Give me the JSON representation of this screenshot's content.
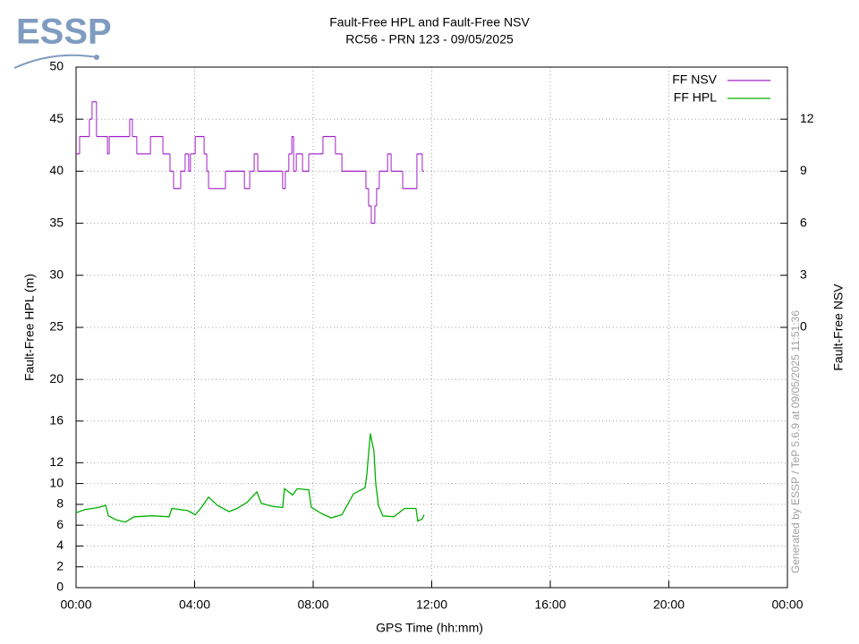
{
  "chart_data": {
    "type": "line",
    "logo": "ESSP",
    "title": "Fault-Free HPL and Fault-Free NSV",
    "subtitle": "RC56 - PRN 123 - 09/05/2025",
    "xlabel": "GPS Time (hh:mm)",
    "ylabel": "Fault-Free HPL (m)",
    "y2label": "Fault-Free NSV",
    "footnote": "Generated by ESSP / TeP 5.6.9 at 09/05/2025 11:51:36",
    "xlim": [
      0,
      24
    ],
    "xticks": [
      {
        "value": 0,
        "label": "00:00"
      },
      {
        "value": 4,
        "label": "04:00"
      },
      {
        "value": 8,
        "label": "08:00"
      },
      {
        "value": 12,
        "label": "12:00"
      },
      {
        "value": 16,
        "label": "16:00"
      },
      {
        "value": 20,
        "label": "20:00"
      },
      {
        "value": 24,
        "label": "00:00"
      }
    ],
    "ylim": [
      0,
      50
    ],
    "yticks": [
      0,
      2,
      4,
      6,
      8,
      10,
      12,
      16,
      20,
      25,
      30,
      35,
      40,
      45,
      50
    ],
    "y2lim": [
      -15,
      15
    ],
    "y2ticks": [
      0,
      3,
      6,
      9,
      12
    ],
    "grid": true,
    "legend": "upper right",
    "series": [
      {
        "name": "FF NSV",
        "color": "#a21ec8",
        "axis": "y2",
        "drawstyle": "steps-post",
        "x": [
          0.0,
          0.12,
          0.45,
          0.54,
          0.69,
          1.06,
          1.12,
          1.81,
          1.9,
          2.05,
          2.51,
          2.93,
          3.17,
          3.29,
          3.53,
          3.68,
          3.8,
          3.86,
          4.02,
          4.32,
          4.41,
          4.47,
          5.04,
          5.68,
          5.86,
          6.01,
          6.13,
          6.97,
          7.06,
          7.18,
          7.28,
          7.34,
          7.43,
          7.64,
          7.85,
          8.33,
          8.75,
          8.97,
          9.78,
          9.87,
          9.96,
          10.08,
          10.14,
          10.23,
          10.51,
          10.63,
          11.02,
          11.5,
          11.68,
          11.74
        ],
        "values": [
          10,
          11,
          12,
          13,
          11,
          10,
          11,
          12,
          11,
          10,
          11,
          10,
          9,
          8,
          9,
          10,
          9,
          10,
          11,
          10,
          9,
          8,
          9,
          8,
          9,
          10,
          9,
          8,
          9,
          10,
          11,
          9,
          10,
          9,
          10,
          11,
          10,
          9,
          8,
          7,
          6,
          7,
          8,
          9,
          10,
          9,
          8,
          10,
          9,
          9
        ]
      },
      {
        "name": "FF HPL",
        "color": "#00b000",
        "x": [
          0.0,
          0.3,
          0.76,
          1.0,
          1.09,
          1.36,
          1.66,
          1.96,
          2.57,
          3.14,
          3.23,
          3.77,
          4.02,
          4.23,
          4.47,
          4.77,
          5.16,
          5.43,
          5.77,
          6.1,
          6.25,
          6.64,
          6.97,
          7.03,
          7.31,
          7.46,
          7.85,
          7.94,
          8.3,
          8.6,
          8.97,
          9.36,
          9.75,
          9.81,
          9.93,
          10.05,
          10.11,
          10.2,
          10.35,
          10.72,
          11.08,
          11.47,
          11.53,
          11.68,
          11.74
        ],
        "values": [
          7.2,
          7.5,
          7.7,
          7.9,
          6.9,
          6.5,
          6.3,
          6.8,
          6.9,
          6.8,
          7.6,
          7.4,
          7.0,
          7.7,
          8.7,
          7.9,
          7.3,
          7.6,
          8.2,
          9.2,
          8.1,
          7.8,
          7.7,
          9.5,
          8.9,
          9.5,
          9.4,
          7.7,
          7.1,
          6.7,
          7.0,
          9.0,
          9.6,
          10.9,
          14.8,
          13.1,
          10.0,
          7.9,
          6.9,
          6.8,
          7.6,
          7.6,
          6.4,
          6.6,
          7.0
        ]
      }
    ]
  }
}
